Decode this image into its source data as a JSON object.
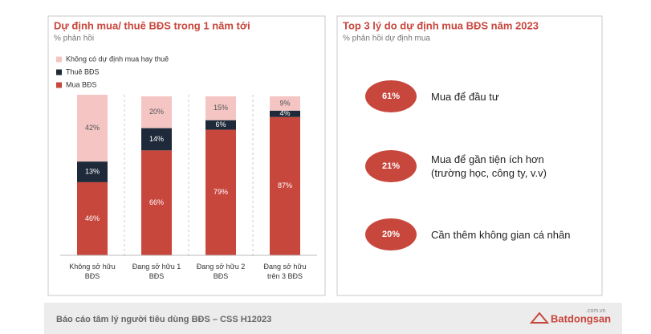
{
  "chart_data": {
    "type": "stacked-bar",
    "title": "Dự định mua/ thuê BĐS trong 1 năm tới",
    "subtitle": "% phản hồi",
    "categories": [
      "Không sở hữu\nBĐS",
      "Đang sở hữu 1\nBĐS",
      "Đang sở hữu 2\nBĐS",
      "Đang sở hữu\ntrên 3 BĐS"
    ],
    "ylim": [
      0,
      101
    ],
    "series": [
      {
        "name": "Mua BĐS",
        "color": "#c8473d",
        "values": [
          46,
          66,
          79,
          87
        ],
        "value_labels": [
          "46%",
          "66%",
          "79%",
          "87%"
        ]
      },
      {
        "name": "Thuê BĐS",
        "color": "#1e2a3a",
        "values": [
          13,
          14,
          6,
          4
        ],
        "value_labels": [
          "13%",
          "14%",
          "6%",
          "4%"
        ]
      },
      {
        "name": "Không có dự định mua hay thuê",
        "color": "#f4c5c3",
        "values": [
          42,
          20,
          15,
          9
        ],
        "value_labels": [
          "42%",
          "20%",
          "15%",
          "9%"
        ]
      }
    ]
  },
  "right_panel": {
    "title": "Top 3 lý do dự định mua BĐS năm 2023",
    "subtitle": "% phản hồi dự định mua",
    "items": [
      {
        "percent": "61%",
        "text": "Mua để đầu tư"
      },
      {
        "percent": "21%",
        "text": "Mua để gần tiện ích hơn\n(trường học, công ty, v.v)"
      },
      {
        "percent": "20%",
        "text": "Cần thêm không gian cá nhân"
      }
    ]
  },
  "footer": {
    "text": "Báo cáo tâm lý người tiêu dùng BĐS – CSS H12023",
    "logo": "Batdongsan",
    "logo_domain": ".com.vn"
  }
}
